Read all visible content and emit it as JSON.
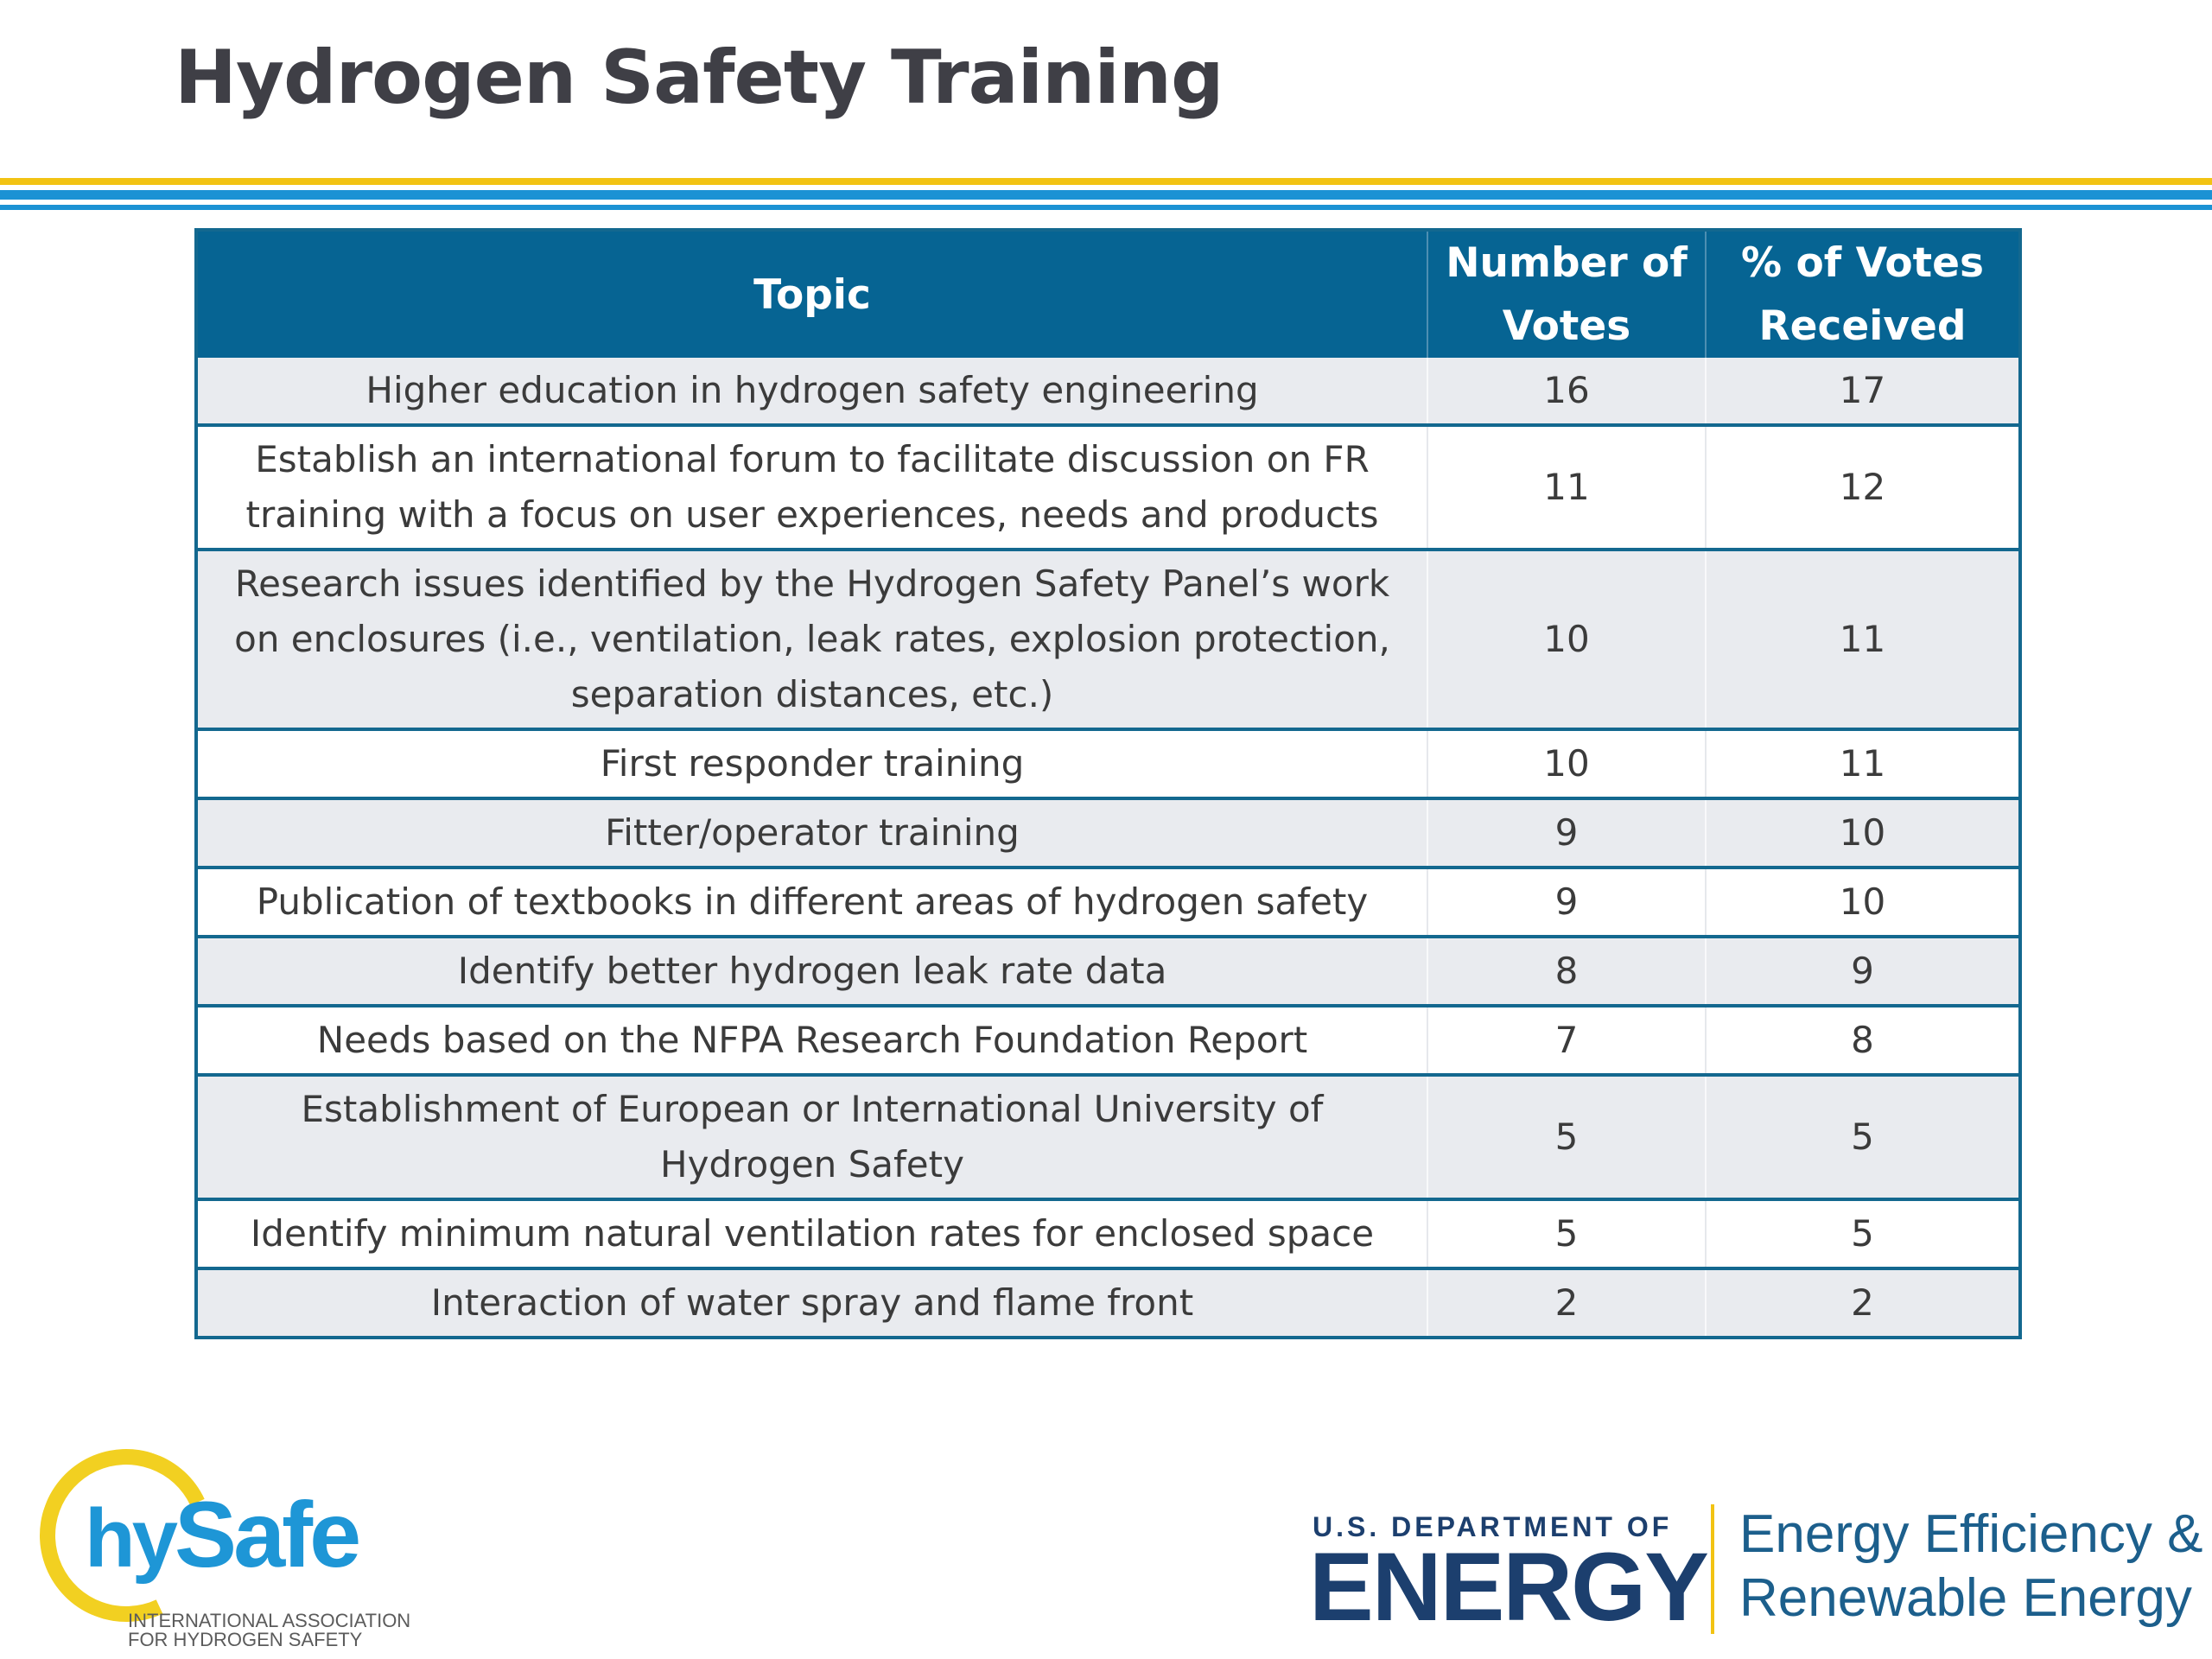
{
  "title": "Hydrogen Safety Training",
  "table": {
    "headers": {
      "topic": "Topic",
      "votes": "Number of Votes",
      "percent": "% of Votes Received"
    },
    "rows": [
      {
        "topic": "Higher education in hydrogen safety engineering",
        "votes": "16",
        "percent": "17"
      },
      {
        "topic": "Establish an international forum to facilitate discussion on FR training with a focus on user experiences, needs and products",
        "votes": "11",
        "percent": "12"
      },
      {
        "topic": "Research issues identified by the Hydrogen Safety Panel’s work on enclosures (i.e., ventilation, leak rates, explosion protection, separation distances, etc.)",
        "votes": "10",
        "percent": "11"
      },
      {
        "topic": "First responder training",
        "votes": "10",
        "percent": "11"
      },
      {
        "topic": "Fitter/operator training",
        "votes": "9",
        "percent": "10"
      },
      {
        "topic": "Publication of textbooks in different areas of hydrogen safety",
        "votes": "9",
        "percent": "10"
      },
      {
        "topic": "Identify better hydrogen leak rate data",
        "votes": "8",
        "percent": "9"
      },
      {
        "topic": "Needs based on the NFPA Research Foundation Report",
        "votes": "7",
        "percent": "8"
      },
      {
        "topic": "Establishment of European or International University of Hydrogen Safety",
        "votes": "5",
        "percent": "5"
      },
      {
        "topic": "Identify minimum natural ventilation rates for enclosed space",
        "votes": "5",
        "percent": "5"
      },
      {
        "topic": "Interaction of water spray and flame front",
        "votes": "2",
        "percent": "2"
      }
    ]
  },
  "logos": {
    "hysafe": {
      "hy": "hy",
      "safe": "Safe",
      "line1": "INTERNATIONAL ASSOCIATION",
      "line2": "FOR HYDROGEN SAFETY"
    },
    "doe": {
      "dept": "U.S. DEPARTMENT OF",
      "energy": "ENERGY",
      "eere_line1": "Energy Efficiency &",
      "eere_line2": "Renewable Energy"
    }
  },
  "colors": {
    "header_bg": "#066493",
    "accent_gold": "#f2c313",
    "accent_blue": "#1b92d4",
    "row_stripe": "#e9ebef"
  }
}
